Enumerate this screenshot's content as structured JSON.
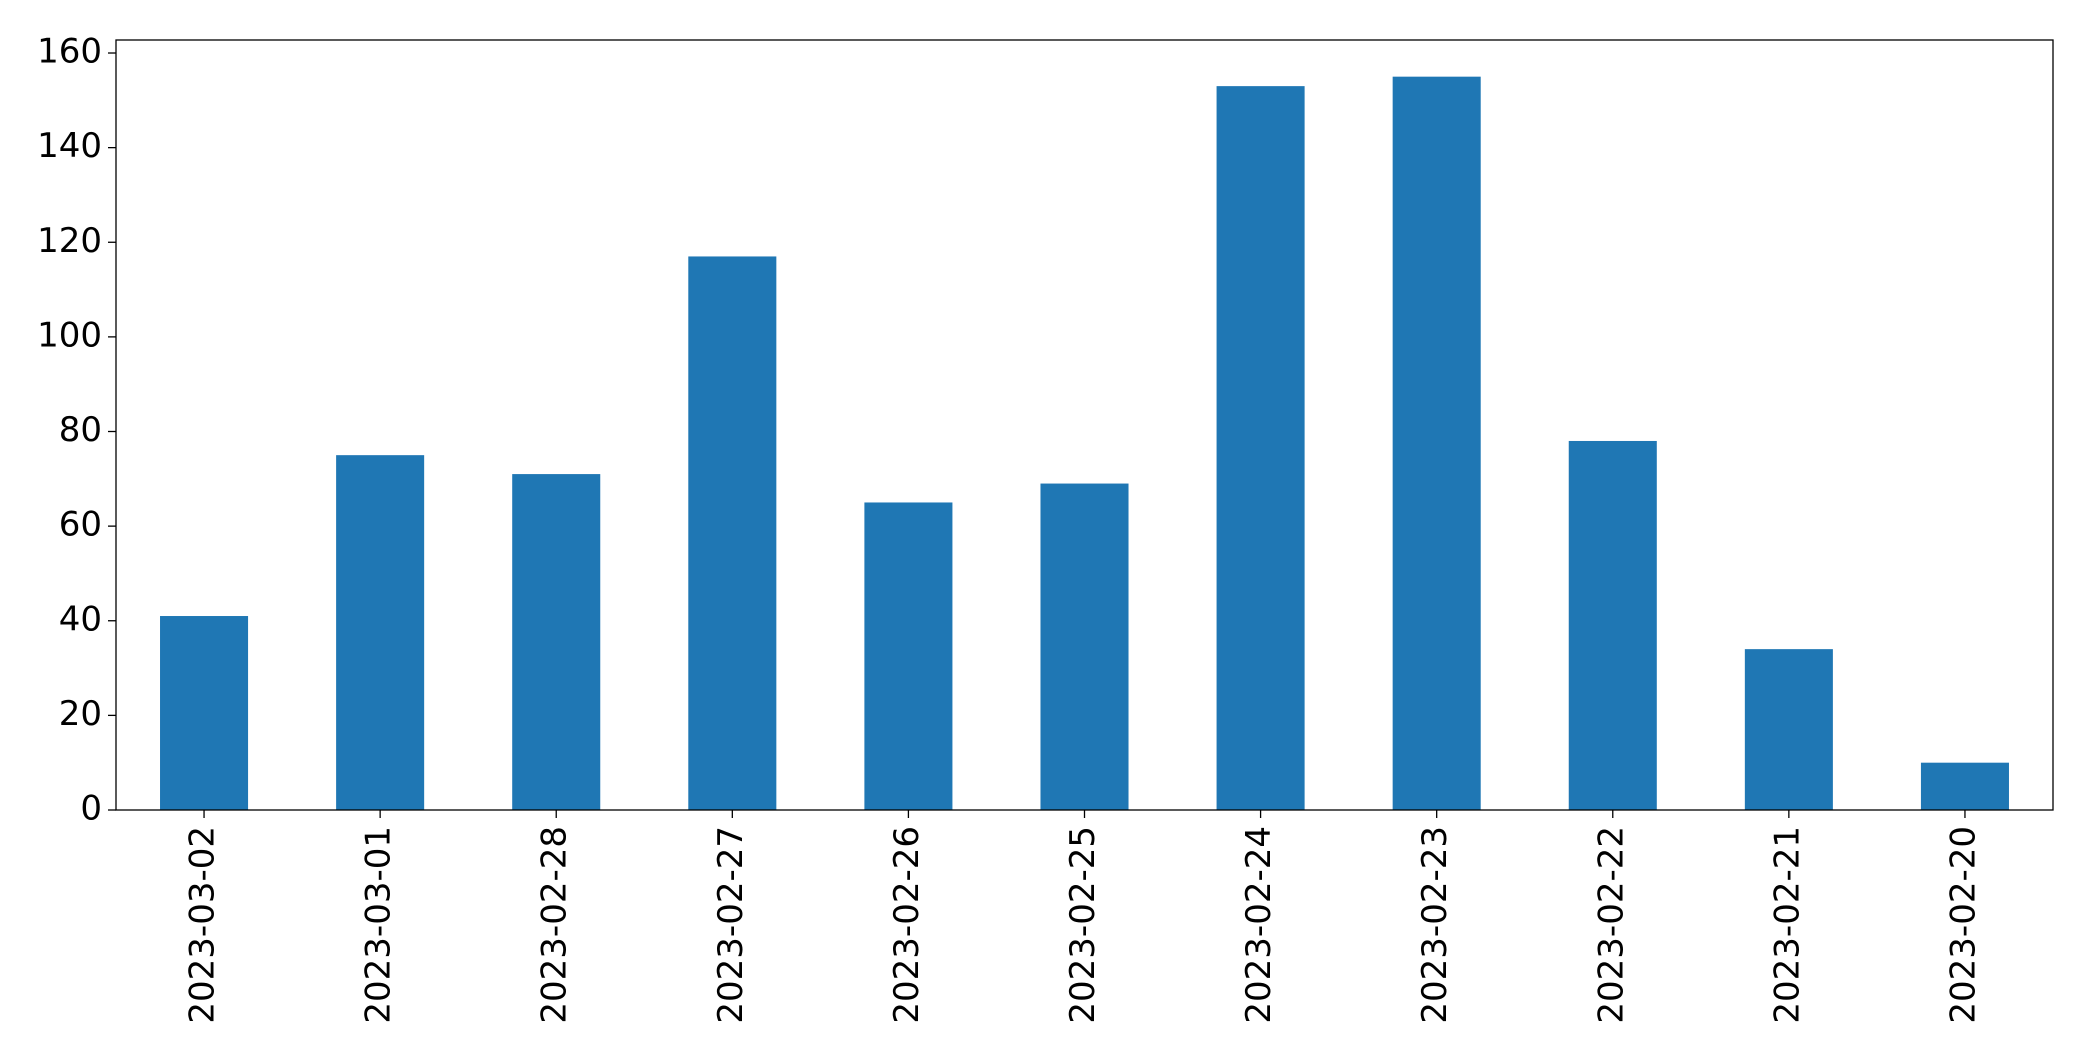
{
  "chart_data": {
    "type": "bar",
    "categories": [
      "2023-03-02",
      "2023-03-01",
      "2023-02-28",
      "2023-02-27",
      "2023-02-26",
      "2023-02-25",
      "2023-02-24",
      "2023-02-23",
      "2023-02-22",
      "2023-02-21",
      "2023-02-20"
    ],
    "values": [
      41,
      75,
      71,
      117,
      65,
      69,
      153,
      155,
      78,
      34,
      10
    ],
    "color": "#1f77b4",
    "ylim": [
      0,
      162.75
    ],
    "yticks": [
      0,
      20,
      40,
      60,
      80,
      100,
      120,
      140,
      160
    ],
    "grid": false
  }
}
